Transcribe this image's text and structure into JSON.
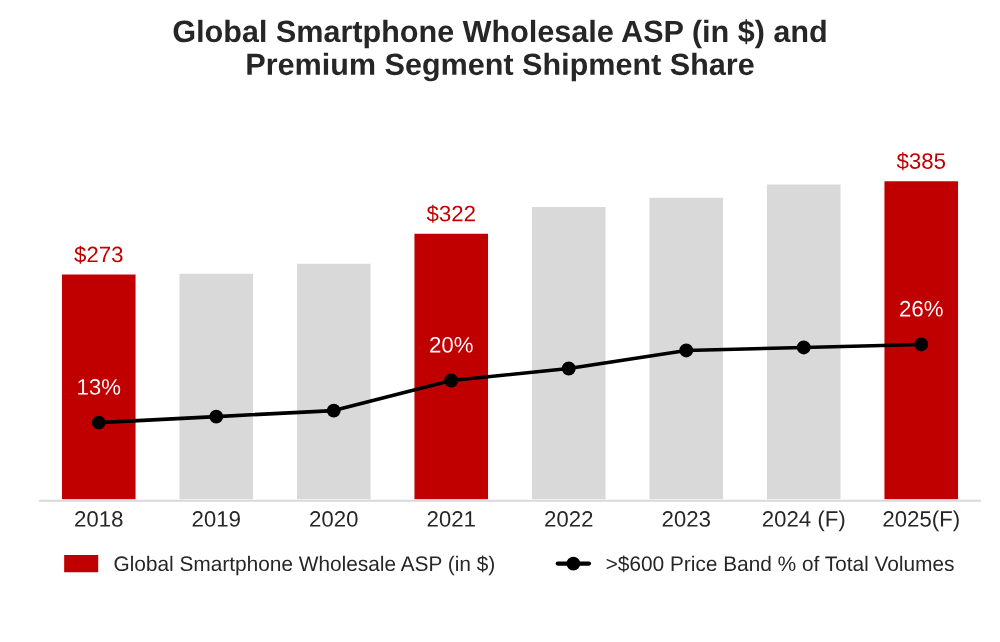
{
  "chart_data": {
    "type": "bar",
    "title": "Global Smartphone Wholesale ASP (in $) and\nPremium Segment Shipment Share",
    "categories": [
      "2018",
      "2019",
      "2020",
      "2021",
      "2022",
      "2023",
      "2024 (F)",
      "2025(F)"
    ],
    "series": [
      {
        "name": "Global Smartphone Wholesale ASP (in $)",
        "color": "#c00000",
        "colors": [
          "#c00000",
          "#d9d9d9",
          "#d9d9d9",
          "#c00000",
          "#d9d9d9",
          "#d9d9d9",
          "#d9d9d9",
          "#c00000"
        ],
        "values": [
          273,
          274,
          286,
          322,
          354,
          365,
          381,
          385
        ],
        "value_labels": [
          "$273",
          null,
          null,
          "$322",
          null,
          null,
          null,
          "$385"
        ]
      },
      {
        "type": "line",
        "axis": "y2",
        "name": ">$600 Price Band % of Total Volumes",
        "color": "#000000",
        "marker": "circle",
        "values": [
          13,
          14,
          15,
          20,
          22,
          25,
          25.5,
          26
        ],
        "value_labels": [
          "13%",
          null,
          null,
          "20%",
          null,
          null,
          null,
          "26%"
        ]
      }
    ],
    "legend": "bottom",
    "grid": false
  }
}
